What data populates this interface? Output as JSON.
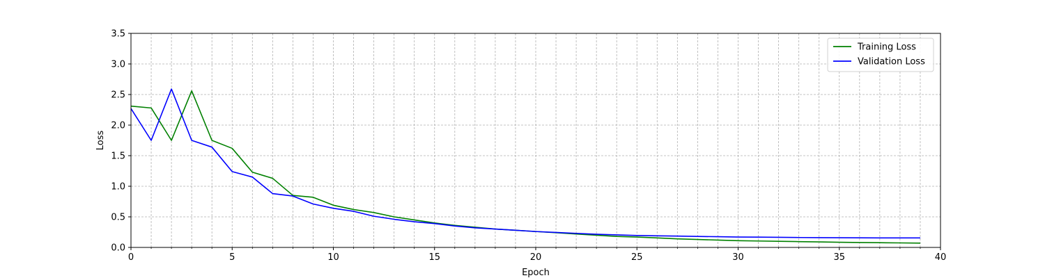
{
  "chart_data": {
    "type": "line",
    "xlabel": "Epoch",
    "ylabel": "Loss",
    "xlim": [
      0,
      40
    ],
    "ylim": [
      0,
      3.5
    ],
    "xticks": [
      0,
      5,
      10,
      15,
      20,
      25,
      30,
      35,
      40
    ],
    "xticks_minor_step": 1,
    "yticks": [
      0.0,
      0.5,
      1.0,
      1.5,
      2.0,
      2.5,
      3.0,
      3.5
    ],
    "ytick_labels": [
      "0.0",
      "0.5",
      "1.0",
      "1.5",
      "2.0",
      "2.5",
      "3.0",
      "3.5"
    ],
    "grid": true,
    "legend_position": "top-right",
    "series": [
      {
        "name": "Training Loss",
        "color": "#008000",
        "x": [
          0,
          1,
          2,
          3,
          4,
          5,
          6,
          7,
          8,
          9,
          10,
          11,
          12,
          13,
          14,
          15,
          16,
          17,
          18,
          19,
          20,
          21,
          22,
          23,
          24,
          25,
          26,
          27,
          28,
          29,
          30,
          31,
          32,
          33,
          34,
          35,
          36,
          37,
          38,
          39
        ],
        "values": [
          2.31,
          2.28,
          1.75,
          2.56,
          1.75,
          1.62,
          1.23,
          1.13,
          0.85,
          0.82,
          0.69,
          0.62,
          0.57,
          0.5,
          0.45,
          0.4,
          0.36,
          0.33,
          0.3,
          0.28,
          0.26,
          0.24,
          0.22,
          0.2,
          0.18,
          0.17,
          0.155,
          0.14,
          0.13,
          0.12,
          0.11,
          0.105,
          0.1,
          0.095,
          0.09,
          0.085,
          0.08,
          0.077,
          0.074,
          0.07
        ]
      },
      {
        "name": "Validation Loss",
        "color": "#0000ff",
        "x": [
          0,
          1,
          2,
          3,
          4,
          5,
          6,
          7,
          8,
          9,
          10,
          11,
          12,
          13,
          14,
          15,
          16,
          17,
          18,
          19,
          20,
          21,
          22,
          23,
          24,
          25,
          26,
          27,
          28,
          29,
          30,
          31,
          32,
          33,
          34,
          35,
          36,
          37,
          38,
          39
        ],
        "values": [
          2.27,
          1.75,
          2.59,
          1.75,
          1.64,
          1.24,
          1.15,
          0.88,
          0.84,
          0.71,
          0.64,
          0.59,
          0.51,
          0.46,
          0.42,
          0.39,
          0.35,
          0.32,
          0.3,
          0.28,
          0.26,
          0.245,
          0.23,
          0.215,
          0.205,
          0.195,
          0.19,
          0.185,
          0.18,
          0.175,
          0.17,
          0.168,
          0.165,
          0.162,
          0.16,
          0.158,
          0.157,
          0.156,
          0.156,
          0.155
        ]
      }
    ]
  }
}
